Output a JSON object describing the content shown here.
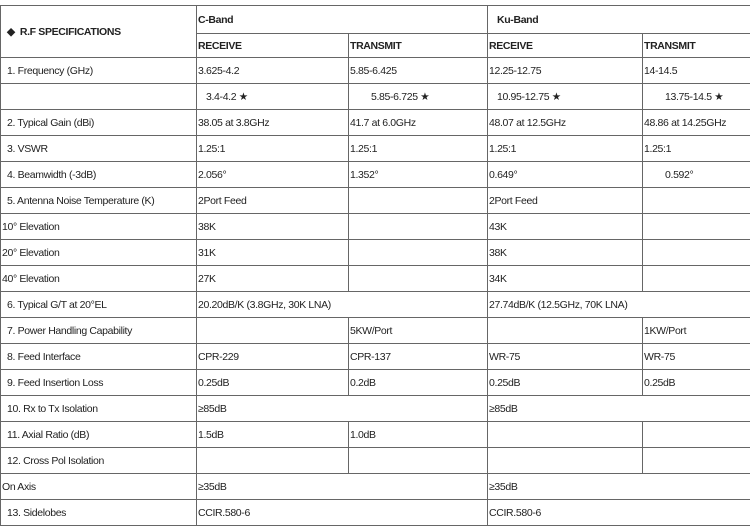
{
  "header": {
    "spec_title": "R.F SPECIFICATIONS",
    "bullet_icon": "diamond",
    "bands": [
      "C-Band",
      "Ku-Band"
    ],
    "sub": [
      "RECEIVE",
      "TRANSMIT",
      "RECEIVE",
      "TRANSMIT"
    ]
  },
  "rows": [
    {
      "label": "1. Frequency (GHz)",
      "cells": [
        "3.625-4.2",
        "5.85-6.425",
        "12.25-12.75",
        "14-14.5"
      ]
    },
    {
      "label": "",
      "cells": [
        "3.4-4.2 ★",
        "5.85-6.725 ★",
        "10.95-12.75 ★",
        "13.75-14.5 ★"
      ],
      "indent": true
    },
    {
      "label": "2. Typical Gain (dBi)",
      "cells": [
        "38.05 at 3.8GHz",
        "41.7 at 6.0GHz",
        "48.07 at 12.5GHz",
        "48.86 at 14.25GHz"
      ]
    },
    {
      "label": "3. VSWR",
      "cells": [
        "1.25:1",
        "1.25:1",
        "1.25:1",
        "1.25:1"
      ]
    },
    {
      "label": "4. Beamwidth (-3dB)",
      "cells": [
        "2.056°",
        "1.352°",
        "0.649°",
        "0.592°"
      ],
      "indent_last": true
    },
    {
      "label": "5. Antenna Noise Temperature (K)",
      "cells": [
        "2Port Feed",
        "",
        "2Port Feed",
        ""
      ]
    },
    {
      "label": "10° Elevation",
      "cells": [
        "38K",
        "",
        "43K",
        ""
      ],
      "nopad": true
    },
    {
      "label": "20° Elevation",
      "cells": [
        "31K",
        "",
        "38K",
        ""
      ],
      "nopad": true
    },
    {
      "label": "40° Elevation",
      "cells": [
        "27K",
        "",
        "34K",
        ""
      ],
      "nopad": true
    },
    {
      "label": "6. Typical G/T at 20°EL",
      "span": [
        "20.20dB/K (3.8GHz, 30K LNA)",
        "27.74dB/K (12.5GHz, 70K LNA)"
      ]
    },
    {
      "label": "7. Power Handling Capability",
      "cells": [
        "",
        "5KW/Port",
        "",
        "1KW/Port"
      ]
    },
    {
      "label": "8. Feed Interface",
      "cells": [
        "CPR-229",
        "CPR-137",
        "WR-75",
        "WR-75"
      ]
    },
    {
      "label": "9. Feed Insertion Loss",
      "cells": [
        "0.25dB",
        "0.2dB",
        "0.25dB",
        "0.25dB"
      ]
    },
    {
      "label": "10. Rx to Tx Isolation",
      "span": [
        "≥85dB",
        "≥85dB"
      ]
    },
    {
      "label": "11. Axial Ratio (dB)",
      "cells": [
        "1.5dB",
        "1.0dB",
        "",
        ""
      ]
    },
    {
      "label": "12. Cross Pol Isolation",
      "cells": [
        "",
        "",
        "",
        ""
      ]
    },
    {
      "label": "On Axis",
      "span": [
        "≥35dB",
        "≥35dB"
      ],
      "nopad": true
    },
    {
      "label": "13. Sidelobes",
      "span": [
        "CCIR.580-6",
        "CCIR.580-6"
      ]
    }
  ]
}
